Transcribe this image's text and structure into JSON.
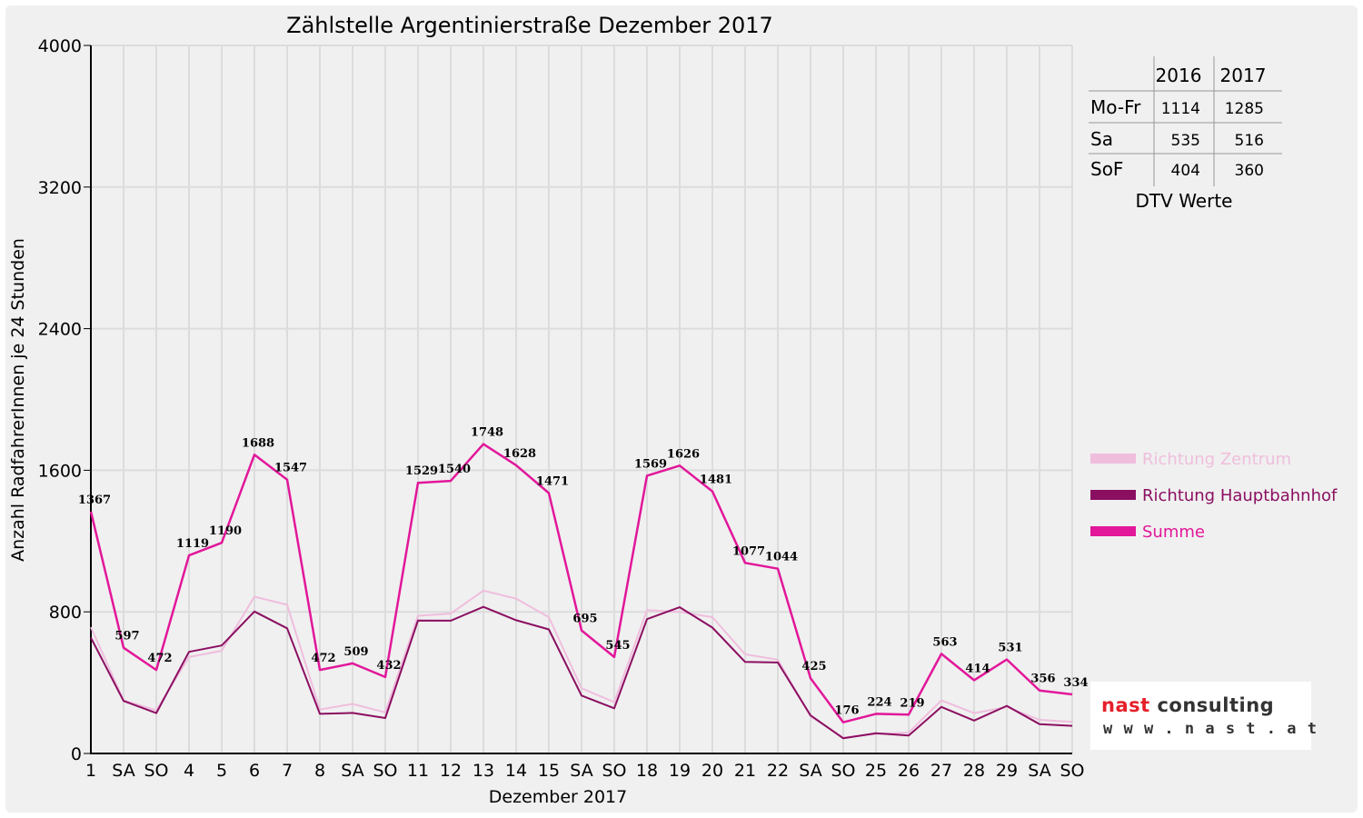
{
  "colors": {
    "zentrum": "#efbedd",
    "hauptbahnhof": "#8b0f61",
    "summe": "#e2179a",
    "weekend_label": "#ff0000",
    "grid": "#dcdcdc"
  },
  "chart_data": {
    "type": "line",
    "title": "Zählstelle Argentinierstraße Dezember 2017",
    "xlabel": "Dezember 2017",
    "ylabel": "Anzahl RadfahrerInnen je 24 Stunden",
    "ylim": [
      0,
      4000
    ],
    "yticks": [
      "0",
      "800",
      "1600",
      "2400",
      "3200",
      "4000"
    ],
    "grid": true,
    "legend_position": "right",
    "categories": [
      "1",
      "SA",
      "SO",
      "4",
      "5",
      "6",
      "7",
      "8",
      "SA",
      "SO",
      "11",
      "12",
      "13",
      "14",
      "15",
      "SA",
      "SO",
      "18",
      "19",
      "20",
      "21",
      "22",
      "SA",
      "SO",
      "25",
      "26",
      "27",
      "28",
      "29",
      "SA",
      "SO"
    ],
    "red_categories": [
      2,
      7,
      9,
      16,
      23,
      24,
      25,
      30
    ],
    "series": [
      {
        "name": "Richtung Zentrum",
        "color": "#efbedd",
        "values": [
          713,
          300,
          244,
          545,
          580,
          886,
          840,
          248,
          280,
          232,
          778,
          790,
          920,
          875,
          770,
          368,
          290,
          810,
          800,
          770,
          560,
          530,
          210,
          90,
          110,
          118,
          300,
          228,
          262,
          190,
          178
        ]
      },
      {
        "name": "Richtung Hauptbahnhof",
        "color": "#8b0f61",
        "values": [
          654,
          297,
          228,
          574,
          610,
          802,
          707,
          224,
          229,
          200,
          751,
          750,
          828,
          753,
          701,
          327,
          255,
          759,
          826,
          711,
          517,
          514,
          215,
          86,
          114,
          101,
          263,
          186,
          269,
          166,
          156
        ]
      },
      {
        "name": "Summe",
        "color": "#e2179a",
        "values": [
          1367,
          597,
          472,
          1119,
          1190,
          1688,
          1547,
          472,
          509,
          432,
          1529,
          1540,
          1748,
          1628,
          1471,
          695,
          545,
          1569,
          1626,
          1481,
          1077,
          1044,
          425,
          176,
          224,
          219,
          563,
          414,
          531,
          356,
          334
        ]
      }
    ],
    "data_labels": [
      "1367",
      "597",
      "472",
      "1119",
      "1190",
      "1688",
      "1547",
      "472",
      "509",
      "432",
      "1529",
      "1540",
      "1748",
      "1628",
      "1471",
      "695",
      "545",
      "1569",
      "1626",
      "1481",
      "1077",
      "1044",
      "425",
      "176",
      "224",
      "219",
      "563",
      "414",
      "531",
      "356",
      "334"
    ]
  },
  "dtv_table": {
    "headers": [
      "",
      "2016",
      "2017"
    ],
    "rows": [
      {
        "label": "Mo-Fr",
        "v2016": "1114",
        "v2017": "1285"
      },
      {
        "label": "Sa",
        "v2016": "535",
        "v2017": "516"
      },
      {
        "label": "SoF",
        "v2016": "404",
        "v2017": "360"
      }
    ],
    "caption": "DTV Werte"
  },
  "logo": {
    "brand": "nast",
    "name": "consulting",
    "url": "w w w . n a s t . a t"
  }
}
